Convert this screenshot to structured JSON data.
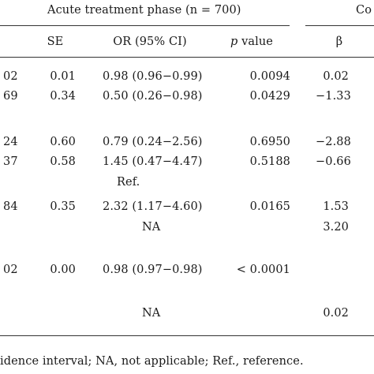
{
  "table": {
    "group_header_acute": "Acute treatment phase (n = 700)",
    "group_header_cont_partial": "Co",
    "col_headers": {
      "se": "SE",
      "or": "OR (95% CI)",
      "p_italic": "p",
      "p_rest": " value",
      "beta": "β"
    },
    "rows": [
      {
        "estimate_partial": "02",
        "se": "0.01",
        "or": "0.98 (0.96−0.99)",
        "p": "0.0094",
        "beta": "0.02"
      },
      {
        "estimate_partial": "69",
        "se": "0.34",
        "or": "0.50 (0.26−0.98)",
        "p": "0.0429",
        "beta": "−1.33"
      },
      {
        "estimate_partial": "24",
        "se": "0.60",
        "or": "0.79 (0.24−2.56)",
        "p": "0.6950",
        "beta": "−2.88"
      },
      {
        "estimate_partial": "37",
        "se": "0.58",
        "or": "1.45 (0.47−4.47)",
        "p": "0.5188",
        "beta": "−0.66"
      },
      {
        "estimate_partial": "",
        "se": "",
        "or": "Ref.",
        "p": "",
        "beta": ""
      },
      {
        "estimate_partial": "84",
        "se": "0.35",
        "or": "2.32 (1.17−4.60)",
        "p": "0.0165",
        "beta": "1.53"
      },
      {
        "estimate_partial": "",
        "se": "",
        "or": "NA",
        "p": "",
        "beta": "3.20"
      },
      {
        "estimate_partial": "02",
        "se": "0.00",
        "or": "0.98 (0.97−0.98)",
        "p": "< 0.0001",
        "beta": ""
      },
      {
        "estimate_partial": "",
        "se": "",
        "or": "NA",
        "p": "",
        "beta": "0.02"
      }
    ],
    "footnote": "idence interval; NA, not applicable; Ref., reference."
  }
}
